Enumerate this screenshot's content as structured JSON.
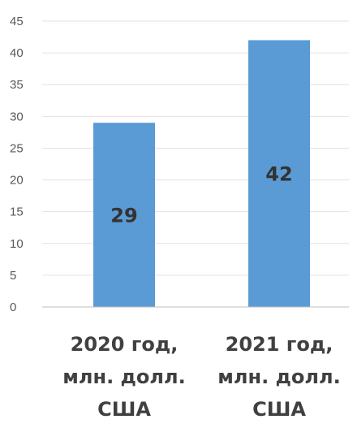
{
  "chart_data": {
    "type": "bar",
    "title": "",
    "xlabel": "",
    "ylabel": "",
    "categories": [
      [
        "2020 год,",
        "млн. долл.",
        "США"
      ],
      [
        "2021 год,",
        "млн. долл.",
        "США"
      ]
    ],
    "values": [
      29,
      42
    ],
    "data_labels": [
      "29",
      "42"
    ],
    "ylim": [
      0,
      45
    ],
    "yticks": [
      0,
      5,
      10,
      15,
      20,
      25,
      30,
      35,
      40,
      45
    ],
    "ytick_labels": [
      "0",
      "5",
      "10",
      "15",
      "20",
      "25",
      "30",
      "35",
      "40",
      "45"
    ],
    "grid": true,
    "legend": "none",
    "colors": {
      "bar": "#5B9BD5",
      "grid": "#e2e2e2",
      "axis": "#bfbfbf"
    }
  }
}
